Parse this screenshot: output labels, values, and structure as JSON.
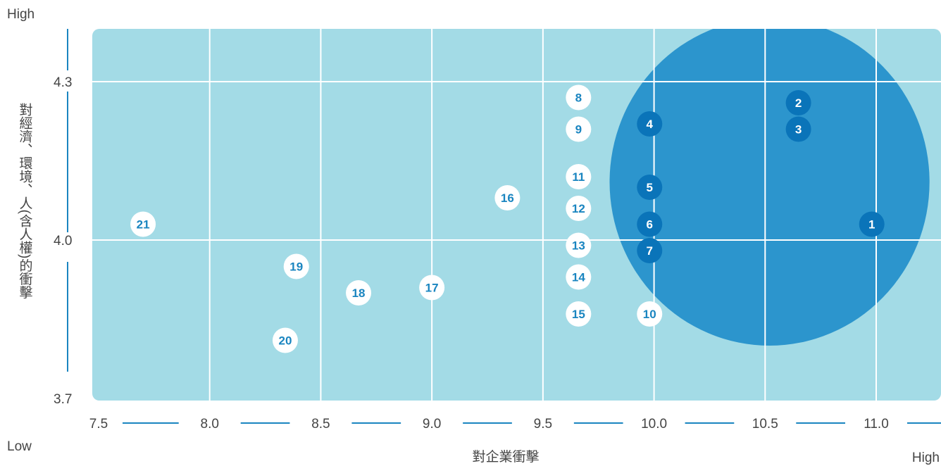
{
  "corner_labels": {
    "y_high": "High",
    "low": "Low",
    "x_high": "High"
  },
  "colors": {
    "plot_bg": "#a3dbe6",
    "highlight": "#2c95cd",
    "point_light_fill": "#ffffff",
    "point_light_text": "#1a85c0",
    "point_dark_fill": "#0a74b9",
    "point_dark_text": "#ffffff",
    "axis_line": "#1a85c0",
    "grid": "#ffffff"
  },
  "chart_data": {
    "type": "scatter",
    "xlabel": "對企業衝擊",
    "ylabel": "對經濟、環境、人(含人權)的衝擊",
    "xlim": [
      7.5,
      11.3
    ],
    "ylim": [
      3.7,
      4.4
    ],
    "x_ticks": [
      "7.5",
      "8.0",
      "8.5",
      "9.0",
      "9.5",
      "10.0",
      "10.5",
      "11.0"
    ],
    "y_ticks": [
      "3.7",
      "4.0",
      "4.3"
    ],
    "grid": true,
    "highlight_region": {
      "shape": "ellipse",
      "center": [
        10.52,
        4.11
      ],
      "radius_x": 0.72,
      "radius_y": 0.31
    },
    "points": [
      {
        "label": "1",
        "x": 10.98,
        "y": 4.03,
        "highlighted": true
      },
      {
        "label": "2",
        "x": 10.65,
        "y": 4.26,
        "highlighted": true
      },
      {
        "label": "3",
        "x": 10.65,
        "y": 4.21,
        "highlighted": true
      },
      {
        "label": "4",
        "x": 9.98,
        "y": 4.22,
        "highlighted": true
      },
      {
        "label": "5",
        "x": 9.98,
        "y": 4.1,
        "highlighted": true
      },
      {
        "label": "6",
        "x": 9.98,
        "y": 4.03,
        "highlighted": true
      },
      {
        "label": "7",
        "x": 9.98,
        "y": 3.98,
        "highlighted": true
      },
      {
        "label": "8",
        "x": 9.66,
        "y": 4.27,
        "highlighted": false
      },
      {
        "label": "9",
        "x": 9.66,
        "y": 4.21,
        "highlighted": false
      },
      {
        "label": "10",
        "x": 9.98,
        "y": 3.86,
        "highlighted": false
      },
      {
        "label": "11",
        "x": 9.66,
        "y": 4.12,
        "highlighted": false
      },
      {
        "label": "12",
        "x": 9.66,
        "y": 4.06,
        "highlighted": false
      },
      {
        "label": "13",
        "x": 9.66,
        "y": 3.99,
        "highlighted": false
      },
      {
        "label": "14",
        "x": 9.66,
        "y": 3.93,
        "highlighted": false
      },
      {
        "label": "15",
        "x": 9.66,
        "y": 3.86,
        "highlighted": false
      },
      {
        "label": "16",
        "x": 9.34,
        "y": 4.08,
        "highlighted": false
      },
      {
        "label": "17",
        "x": 9.0,
        "y": 3.91,
        "highlighted": false
      },
      {
        "label": "18",
        "x": 8.67,
        "y": 3.9,
        "highlighted": false
      },
      {
        "label": "19",
        "x": 8.39,
        "y": 3.95,
        "highlighted": false
      },
      {
        "label": "20",
        "x": 8.34,
        "y": 3.81,
        "highlighted": false
      },
      {
        "label": "21",
        "x": 7.7,
        "y": 4.03,
        "highlighted": false
      }
    ]
  }
}
